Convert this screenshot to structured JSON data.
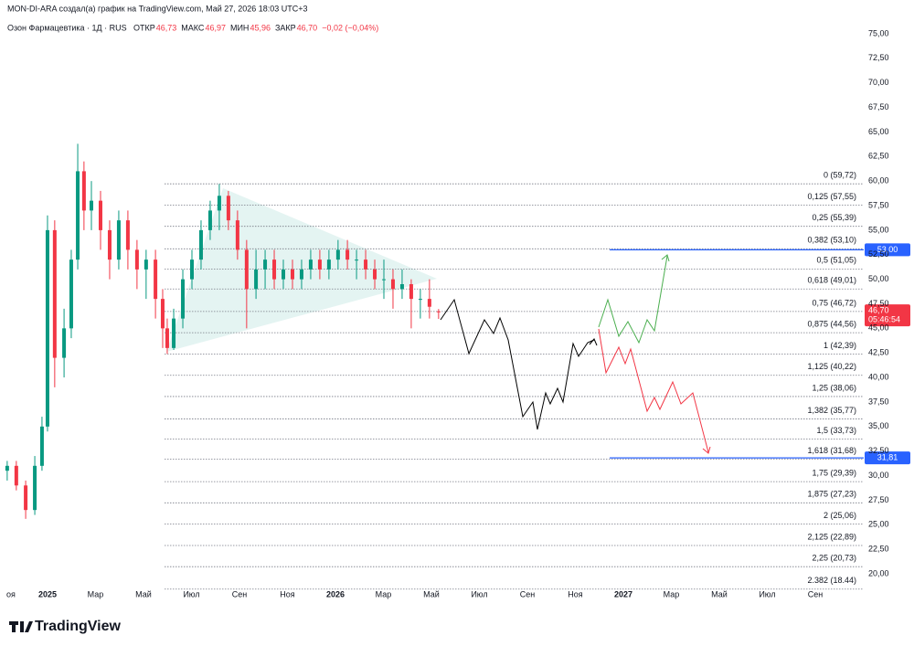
{
  "header": {
    "attribution": "MON-DI-ARA создал(а) график на TradingView.com, Май 27, 2026 18:03 UTC+3",
    "symbol": "Озон Фармацевтика · 1Д · RUS",
    "ohlc": [
      {
        "label": "ОТКР",
        "value": "46,73"
      },
      {
        "label": "МАКС",
        "value": "46,97"
      },
      {
        "label": "МИН",
        "value": "45,96"
      },
      {
        "label": "ЗАКР",
        "value": "46,70"
      }
    ],
    "change": "−0,02 (−0,04%)"
  },
  "footer": {
    "logo": "TradingView"
  },
  "chart_data": {
    "type": "candlestick",
    "x": [
      -1.68,
      -1.3,
      -0.91,
      -0.53,
      -0.23,
      0,
      0.3,
      0.69,
      0.99,
      1.26,
      1.52,
      1.83,
      2.21,
      2.59,
      2.97,
      3.35,
      3.73,
      4.11,
      4.5,
      4.8,
      4.99,
      5.26,
      5.64,
      6.02,
      6.4,
      6.78,
      7.16,
      7.54,
      7.92,
      8.3,
      8.69,
      9.07,
      9.45,
      9.83,
      10.21,
      10.59,
      10.97,
      11.35,
      11.73,
      12.11,
      12.5,
      12.88,
      13.26,
      13.64,
      14.02,
      14.4,
      14.78,
      15.16,
      15.54,
      15.92,
      16.3
    ],
    "open": [
      30.5,
      31,
      29,
      26.5,
      31,
      35,
      55,
      42,
      45,
      52,
      61,
      57,
      58,
      55,
      52,
      56,
      53,
      51,
      52,
      48,
      45,
      43,
      46,
      50,
      52,
      55,
      57,
      58.5,
      56,
      53,
      49,
      51,
      52,
      50,
      51,
      50,
      51,
      52,
      51,
      52,
      53,
      52,
      52,
      51,
      50,
      50,
      49,
      49.5,
      48,
      48,
      46.73
    ],
    "high": [
      31.5,
      31.5,
      29.5,
      32,
      36,
      56.5,
      56,
      47,
      53,
      63.8,
      62,
      60,
      59,
      56,
      57,
      57,
      54,
      53,
      53,
      49,
      46,
      47,
      51,
      53,
      56,
      58,
      59.7,
      59,
      57,
      54,
      53,
      53,
      53,
      52,
      52,
      52,
      53,
      53,
      53,
      54,
      54,
      53,
      53,
      52,
      52,
      51,
      51,
      50,
      49,
      50,
      46.97
    ],
    "low": [
      29.5,
      28.5,
      25.6,
      26,
      30.5,
      34.5,
      39,
      40,
      44,
      51,
      55,
      55,
      53,
      50,
      51,
      51,
      49,
      48,
      46,
      43,
      42.4,
      42.8,
      45,
      49,
      51,
      54,
      55,
      55,
      52,
      45,
      48,
      49,
      49,
      49,
      49,
      49,
      50,
      50,
      50,
      51,
      51,
      50,
      50,
      49,
      48,
      47,
      48,
      45,
      46,
      46,
      45.96
    ],
    "close": [
      31,
      29,
      26.5,
      31,
      35,
      55,
      42,
      45,
      52,
      61,
      57,
      58,
      55,
      52,
      56,
      53,
      51,
      52,
      48,
      45,
      43,
      46,
      50,
      52,
      55,
      57,
      58.5,
      56,
      53,
      49,
      51,
      52,
      50,
      51,
      50,
      51,
      52,
      51,
      52,
      53,
      52,
      52,
      51,
      50,
      50,
      49,
      49.5,
      48,
      48,
      47.2,
      46.7
    ],
    "up_color": "#089981",
    "down_color": "#f23645",
    "xlim": [
      -1.98,
      34.02
    ],
    "xticks": [
      {
        "value": -2,
        "label": "оя"
      },
      {
        "value": 0,
        "label": "2025"
      },
      {
        "value": 2,
        "label": "Мар"
      },
      {
        "value": 4,
        "label": "Май"
      },
      {
        "value": 6,
        "label": "Июл"
      },
      {
        "value": 8,
        "label": "Сен"
      },
      {
        "value": 10,
        "label": "Ноя"
      },
      {
        "value": 12,
        "label": "2026"
      },
      {
        "value": 14,
        "label": "Мар"
      },
      {
        "value": 16,
        "label": "Май"
      },
      {
        "value": 18,
        "label": "Июл"
      },
      {
        "value": 20,
        "label": "Сен"
      },
      {
        "value": 22,
        "label": "Ноя"
      },
      {
        "value": 24,
        "label": "2027"
      },
      {
        "value": 26,
        "label": "Мар"
      },
      {
        "value": 28,
        "label": "Май"
      },
      {
        "value": 30,
        "label": "Июл"
      },
      {
        "value": 32,
        "label": "Сен"
      }
    ],
    "ylim": [
      18.42,
      78.44
    ],
    "yticks": [
      {
        "value": 20,
        "label": "20,00"
      },
      {
        "value": 22.5,
        "label": "22,50"
      },
      {
        "value": 25,
        "label": "25,00"
      },
      {
        "value": 27.5,
        "label": "27,50"
      },
      {
        "value": 30,
        "label": "30,00"
      },
      {
        "value": 32.5,
        "label": "32,50"
      },
      {
        "value": 35,
        "label": "35,00"
      },
      {
        "value": 37.5,
        "label": "37,50"
      },
      {
        "value": 40,
        "label": "40,00"
      },
      {
        "value": 42.5,
        "label": "42,50"
      },
      {
        "value": 45,
        "label": "45,00"
      },
      {
        "value": 47.5,
        "label": "47,50"
      },
      {
        "value": 50,
        "label": "50,00"
      },
      {
        "value": 52.5,
        "label": "52,50"
      },
      {
        "value": 55,
        "label": "55,00"
      },
      {
        "value": 57.5,
        "label": "57,50"
      },
      {
        "value": 60,
        "label": "60,00"
      },
      {
        "value": 62.5,
        "label": "62,50"
      },
      {
        "value": 65,
        "label": "65,00"
      },
      {
        "value": 67.5,
        "label": "67,50"
      },
      {
        "value": 70,
        "label": "70,00"
      },
      {
        "value": 72.5,
        "label": "72,50"
      },
      {
        "value": 75,
        "label": "75,00"
      }
    ],
    "grid": false,
    "fib_levels": [
      {
        "value": 59.72,
        "label": "0 (59,72)"
      },
      {
        "value": 57.55,
        "label": "0,125 (57,55)"
      },
      {
        "value": 55.39,
        "label": "0,25 (55,39)"
      },
      {
        "value": 53.1,
        "label": "0,382 (53,10)"
      },
      {
        "value": 51.05,
        "label": "0,5 (51,05)"
      },
      {
        "value": 49.01,
        "label": "0,618 (49,01)"
      },
      {
        "value": 46.72,
        "label": "0,75 (46,72)"
      },
      {
        "value": 44.56,
        "label": "0,875 (44,56)"
      },
      {
        "value": 42.39,
        "label": "1 (42,39)"
      },
      {
        "value": 40.22,
        "label": "1,125 (40,22)"
      },
      {
        "value": 38.06,
        "label": "1,25 (38,06)"
      },
      {
        "value": 35.77,
        "label": "1,382 (35,77)"
      },
      {
        "value": 33.73,
        "label": "1,5 (33,73)"
      },
      {
        "value": 31.68,
        "label": "1,618 (31,68)"
      },
      {
        "value": 29.39,
        "label": "1,75 (29,39)"
      },
      {
        "value": 27.23,
        "label": "1,875 (27,23)"
      },
      {
        "value": 25.06,
        "label": "2 (25,06)"
      },
      {
        "value": 22.89,
        "label": "2,125 (22,89)"
      },
      {
        "value": 20.73,
        "label": "2,25 (20,73)"
      },
      {
        "value": 18.44,
        "label": "2.382 (18.44)"
      }
    ],
    "price_lines": [
      {
        "value": 53.0,
        "label": "53,00",
        "color": "#2962ff"
      },
      {
        "value": 31.81,
        "label": "31,81",
        "color": "#2962ff"
      }
    ],
    "last_price": {
      "value": 46.7,
      "label": "46,70",
      "countdown": "05:46:54",
      "color": "#f23645"
    }
  }
}
